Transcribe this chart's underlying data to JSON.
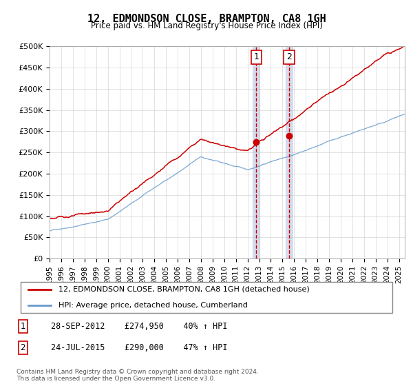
{
  "title": "12, EDMONDSON CLOSE, BRAMPTON, CA8 1GH",
  "subtitle": "Price paid vs. HM Land Registry's House Price Index (HPI)",
  "ylim": [
    0,
    500000
  ],
  "yticks": [
    0,
    50000,
    100000,
    150000,
    200000,
    250000,
    300000,
    350000,
    400000,
    450000,
    500000
  ],
  "xlim_start": 1995.0,
  "xlim_end": 2025.5,
  "sale1_date": 2012.75,
  "sale1_price": 274950,
  "sale1_label": "1",
  "sale1_text": "28-SEP-2012    £274,950    40% ↑ HPI",
  "sale2_date": 2015.56,
  "sale2_price": 290000,
  "sale2_label": "2",
  "sale2_text": "24-JUL-2015    £290,000    47% ↑ HPI",
  "legend_line1": "12, EDMONDSON CLOSE, BRAMPTON, CA8 1GH (detached house)",
  "legend_line2": "HPI: Average price, detached house, Cumberland",
  "footer": "Contains HM Land Registry data © Crown copyright and database right 2024.\nThis data is licensed under the Open Government Licence v3.0.",
  "line_color_red": "#cc0000",
  "line_color_blue": "#6699cc",
  "sale_marker_color": "#cc0000",
  "vline_color_blue": "#aabbdd",
  "vline_color_red": "#cc0000",
  "background_color": "#ffffff",
  "grid_color": "#cccccc"
}
